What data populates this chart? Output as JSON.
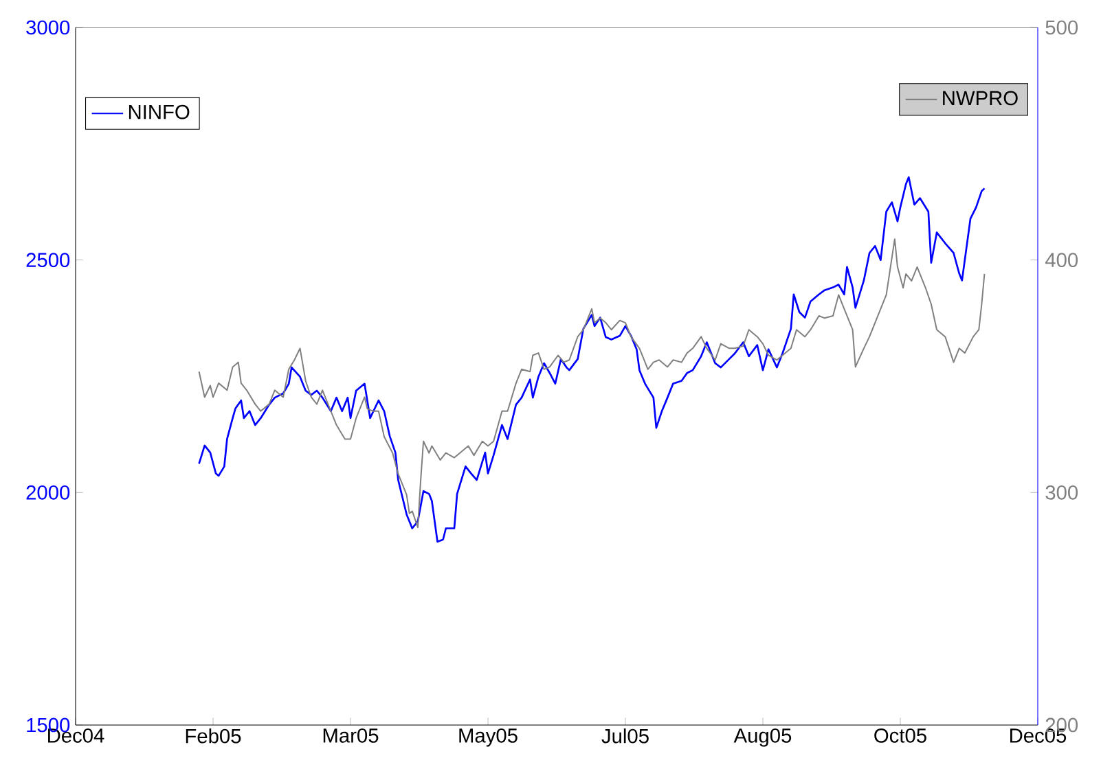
{
  "chart_data": {
    "type": "line",
    "xlim": [
      "2004-12-23",
      "2005-12-01"
    ],
    "xticks": [
      {
        "value": "2004-12-23",
        "label": "Dec04"
      },
      {
        "value": "2005-02-10",
        "label": "Feb05"
      },
      {
        "value": "2005-03-31",
        "label": "Mar05"
      },
      {
        "value": "2005-05-19",
        "label": "May05"
      },
      {
        "value": "2005-07-07",
        "label": "Jul05"
      },
      {
        "value": "2005-08-25",
        "label": "Aug05"
      },
      {
        "value": "2005-10-13",
        "label": "Oct05"
      },
      {
        "value": "2005-12-01",
        "label": "Dec05"
      }
    ],
    "ylim": [
      1500,
      3000
    ],
    "yticks": [
      1500,
      2000,
      2500,
      3000
    ],
    "y2lim": [
      200,
      500
    ],
    "y2ticks": [
      200,
      300,
      400,
      500
    ],
    "grid": false,
    "legend": "top",
    "marker": "none",
    "line_style": "solid",
    "series": [
      {
        "name": "NINFO",
        "color": "#0000ff",
        "axis": "y",
        "x": [
          "2005-02-05",
          "2005-02-07",
          "2005-02-09",
          "2005-02-11",
          "2005-02-12",
          "2005-02-14",
          "2005-02-15",
          "2005-02-17",
          "2005-02-18",
          "2005-02-20",
          "2005-02-21",
          "2005-02-23",
          "2005-02-25",
          "2005-02-27",
          "2005-03-02",
          "2005-03-04",
          "2005-03-07",
          "2005-03-09",
          "2005-03-10",
          "2005-03-13",
          "2005-03-15",
          "2005-03-17",
          "2005-03-19",
          "2005-03-21",
          "2005-03-24",
          "2005-03-26",
          "2005-03-28",
          "2005-03-30",
          "2005-03-31",
          "2005-04-02",
          "2005-04-05",
          "2005-04-07",
          "2005-04-10",
          "2005-04-12",
          "2005-04-14",
          "2005-04-16",
          "2005-04-17",
          "2005-04-20",
          "2005-04-22",
          "2005-04-24",
          "2005-04-26",
          "2005-04-28",
          "2005-04-29",
          "2005-05-01",
          "2005-05-03",
          "2005-05-04",
          "2005-05-07",
          "2005-05-08",
          "2005-05-11",
          "2005-05-13",
          "2005-05-15",
          "2005-05-18",
          "2005-05-19",
          "2005-05-21",
          "2005-05-24",
          "2005-05-26",
          "2005-05-29",
          "2005-05-31",
          "2005-06-03",
          "2005-06-04",
          "2005-06-06",
          "2005-06-08",
          "2005-06-10",
          "2005-06-12",
          "2005-06-14",
          "2005-06-16",
          "2005-06-17",
          "2005-06-20",
          "2005-06-22",
          "2005-06-25",
          "2005-06-26",
          "2005-06-28",
          "2005-06-30",
          "2005-07-02",
          "2005-07-05",
          "2005-07-07",
          "2005-07-09",
          "2005-07-11",
          "2005-07-12",
          "2005-07-14",
          "2005-07-17",
          "2005-07-18",
          "2005-07-20",
          "2005-07-22",
          "2005-07-24",
          "2005-07-27",
          "2005-07-29",
          "2005-07-31",
          "2005-08-03",
          "2005-08-05",
          "2005-08-08",
          "2005-08-10",
          "2005-08-13",
          "2005-08-15",
          "2005-08-18",
          "2005-08-20",
          "2005-08-23",
          "2005-08-25",
          "2005-08-27",
          "2005-08-30",
          "2005-09-01",
          "2005-09-04",
          "2005-09-05",
          "2005-09-07",
          "2005-09-09",
          "2005-09-11",
          "2005-09-14",
          "2005-09-16",
          "2005-09-19",
          "2005-09-21",
          "2005-09-23",
          "2005-09-24",
          "2005-09-26",
          "2005-09-27",
          "2005-09-30",
          "2005-10-02",
          "2005-10-04",
          "2005-10-06",
          "2005-10-08",
          "2005-10-10",
          "2005-10-12",
          "2005-10-13",
          "2005-10-15",
          "2005-10-16",
          "2005-10-18",
          "2005-10-20",
          "2005-10-23",
          "2005-10-24",
          "2005-10-26",
          "2005-10-29",
          "2005-11-01",
          "2005-11-03",
          "2005-11-04",
          "2005-11-07",
          "2005-11-09",
          "2005-11-11",
          "2005-11-12"
        ],
        "values": [
          2062,
          2101,
          2086,
          2041,
          2036,
          2056,
          2115,
          2160,
          2181,
          2198,
          2160,
          2175,
          2145,
          2160,
          2189,
          2204,
          2213,
          2234,
          2269,
          2249,
          2219,
          2210,
          2219,
          2204,
          2175,
          2204,
          2175,
          2204,
          2160,
          2219,
          2234,
          2160,
          2198,
          2175,
          2121,
          2086,
          2027,
          1953,
          1923,
          1938,
          2003,
          1997,
          1982,
          1894,
          1899,
          1923,
          1923,
          1997,
          2056,
          2041,
          2027,
          2086,
          2041,
          2080,
          2145,
          2115,
          2189,
          2204,
          2243,
          2204,
          2249,
          2278,
          2257,
          2234,
          2287,
          2269,
          2263,
          2287,
          2352,
          2382,
          2358,
          2376,
          2334,
          2329,
          2337,
          2358,
          2337,
          2308,
          2263,
          2234,
          2204,
          2139,
          2175,
          2204,
          2234,
          2240,
          2257,
          2263,
          2293,
          2323,
          2278,
          2269,
          2287,
          2299,
          2323,
          2293,
          2317,
          2263,
          2308,
          2269,
          2299,
          2352,
          2426,
          2388,
          2376,
          2411,
          2426,
          2435,
          2441,
          2447,
          2426,
          2485,
          2441,
          2397,
          2456,
          2515,
          2530,
          2500,
          2604,
          2624,
          2583,
          2613,
          2663,
          2678,
          2619,
          2633,
          2604,
          2494,
          2559,
          2536,
          2515,
          2471,
          2456,
          2589,
          2613,
          2648,
          2654
        ]
      },
      {
        "name": "NWPRO",
        "color": "#808080",
        "axis": "y2",
        "x": [
          "2005-02-05",
          "2005-02-07",
          "2005-02-09",
          "2005-02-10",
          "2005-02-12",
          "2005-02-15",
          "2005-02-17",
          "2005-02-19",
          "2005-02-20",
          "2005-02-22",
          "2005-02-25",
          "2005-02-27",
          "2005-03-02",
          "2005-03-04",
          "2005-03-07",
          "2005-03-09",
          "2005-03-11",
          "2005-03-13",
          "2005-03-15",
          "2005-03-17",
          "2005-03-19",
          "2005-03-21",
          "2005-03-24",
          "2005-03-26",
          "2005-03-29",
          "2005-03-31",
          "2005-04-02",
          "2005-04-04",
          "2005-04-05",
          "2005-04-06",
          "2005-04-08",
          "2005-04-10",
          "2005-04-12",
          "2005-04-15",
          "2005-04-17",
          "2005-04-20",
          "2005-04-21",
          "2005-04-22",
          "2005-04-24",
          "2005-04-25",
          "2005-04-26",
          "2005-04-28",
          "2005-04-29",
          "2005-05-02",
          "2005-05-04",
          "2005-05-07",
          "2005-05-09",
          "2005-05-12",
          "2005-05-14",
          "2005-05-17",
          "2005-05-19",
          "2005-05-21",
          "2005-05-24",
          "2005-05-26",
          "2005-05-29",
          "2005-05-31",
          "2005-06-03",
          "2005-06-04",
          "2005-06-06",
          "2005-06-08",
          "2005-06-10",
          "2005-06-13",
          "2005-06-15",
          "2005-06-17",
          "2005-06-20",
          "2005-06-22",
          "2005-06-25",
          "2005-06-26",
          "2005-06-28",
          "2005-06-30",
          "2005-07-02",
          "2005-07-05",
          "2005-07-07",
          "2005-07-09",
          "2005-07-12",
          "2005-07-13",
          "2005-07-15",
          "2005-07-17",
          "2005-07-19",
          "2005-07-22",
          "2005-07-24",
          "2005-07-27",
          "2005-07-29",
          "2005-07-31",
          "2005-08-03",
          "2005-08-05",
          "2005-08-08",
          "2005-08-10",
          "2005-08-13",
          "2005-08-15",
          "2005-08-18",
          "2005-08-20",
          "2005-08-23",
          "2005-08-25",
          "2005-08-27",
          "2005-08-30",
          "2005-09-01",
          "2005-09-04",
          "2005-09-06",
          "2005-09-09",
          "2005-09-11",
          "2005-09-14",
          "2005-09-16",
          "2005-09-19",
          "2005-09-21",
          "2005-09-23",
          "2005-09-26",
          "2005-09-27",
          "2005-09-30",
          "2005-10-02",
          "2005-10-04",
          "2005-10-06",
          "2005-10-08",
          "2005-10-11",
          "2005-10-12",
          "2005-10-14",
          "2005-10-15",
          "2005-10-17",
          "2005-10-19",
          "2005-10-22",
          "2005-10-24",
          "2005-10-26",
          "2005-10-29",
          "2005-11-01",
          "2005-11-03",
          "2005-11-05",
          "2005-11-08",
          "2005-11-10",
          "2005-11-11",
          "2005-11-12"
        ],
        "values": [
          352,
          341,
          346,
          341,
          347,
          344,
          354,
          356,
          347,
          344,
          338,
          335,
          338,
          344,
          341,
          353,
          357,
          362,
          348,
          341,
          338,
          344,
          335,
          329,
          323,
          323,
          332,
          338,
          341,
          336,
          335,
          335,
          324,
          317,
          308,
          299,
          291,
          292,
          285,
          305,
          322,
          317,
          320,
          314,
          317,
          315,
          317,
          320,
          316,
          322,
          320,
          322,
          335,
          335,
          347,
          353,
          352,
          359,
          360,
          353,
          354,
          359,
          356,
          357,
          367,
          370,
          379,
          373,
          375,
          373,
          370,
          374,
          373,
          367,
          362,
          359,
          353,
          356,
          357,
          354,
          357,
          356,
          360,
          362,
          367,
          362,
          357,
          364,
          362,
          362,
          363,
          370,
          367,
          364,
          359,
          357,
          359,
          362,
          370,
          367,
          370,
          376,
          375,
          376,
          385,
          379,
          370,
          354,
          362,
          367,
          373,
          379,
          385,
          409,
          397,
          388,
          394,
          391,
          397,
          388,
          381,
          370,
          367,
          356,
          362,
          360,
          367,
          370,
          381,
          394
        ]
      }
    ]
  }
}
